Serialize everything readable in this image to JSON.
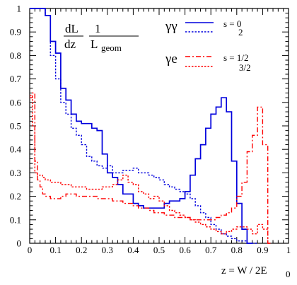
{
  "chart_data": {
    "type": "line",
    "x_label_main": "z = W / 2E",
    "x_label_sub": "0",
    "y_label": {
      "num1": "dL",
      "den1": "dz",
      "num2": "1",
      "den2_main": "L",
      "den2_sub": "geom"
    },
    "xlim": [
      0,
      1
    ],
    "ylim": [
      0,
      1
    ],
    "x_ticks": [
      "0",
      "0.1",
      "0.2",
      "0.3",
      "0.4",
      "0.5",
      "0.6",
      "0.7",
      "0.8",
      "0.9",
      "1"
    ],
    "y_ticks": [
      "0",
      "0.1",
      "0.2",
      "0.3",
      "0.4",
      "0.5",
      "0.6",
      "0.7",
      "0.8",
      "0.9",
      "1"
    ],
    "legend": {
      "group1": "γγ",
      "group2": "γe",
      "entries": [
        "s = 0",
        "2",
        "s = 1/2",
        "3/2"
      ]
    },
    "series": [
      {
        "name": "s = 0",
        "group": "γγ",
        "color": "#0000dd",
        "dash": "solid",
        "x": [
          0,
          0.02,
          0.04,
          0.06,
          0.08,
          0.1,
          0.12,
          0.14,
          0.16,
          0.18,
          0.2,
          0.22,
          0.24,
          0.26,
          0.28,
          0.3,
          0.32,
          0.34,
          0.36,
          0.38,
          0.4,
          0.42,
          0.44,
          0.46,
          0.48,
          0.5,
          0.52,
          0.54,
          0.56,
          0.58,
          0.6,
          0.62,
          0.64,
          0.66,
          0.68,
          0.7,
          0.72,
          0.74,
          0.76,
          0.78,
          0.8,
          0.82,
          0.84
        ],
        "y": [
          1,
          1,
          1,
          0.97,
          0.86,
          0.81,
          0.66,
          0.61,
          0.55,
          0.52,
          0.51,
          0.51,
          0.49,
          0.48,
          0.38,
          0.3,
          0.28,
          0.25,
          0.21,
          0.21,
          0.17,
          0.16,
          0.15,
          0.15,
          0.15,
          0.15,
          0.17,
          0.18,
          0.18,
          0.19,
          0.22,
          0.29,
          0.36,
          0.42,
          0.49,
          0.55,
          0.58,
          0.62,
          0.56,
          0.35,
          0.17,
          0.06,
          0.0
        ]
      },
      {
        "name": "2",
        "group": "γγ",
        "color": "#0000dd",
        "dash": "dotted",
        "x": [
          0,
          0.02,
          0.04,
          0.06,
          0.08,
          0.1,
          0.12,
          0.14,
          0.16,
          0.18,
          0.2,
          0.22,
          0.24,
          0.26,
          0.28,
          0.3,
          0.32,
          0.34,
          0.36,
          0.38,
          0.4,
          0.42,
          0.44,
          0.46,
          0.48,
          0.5,
          0.52,
          0.54,
          0.56,
          0.58,
          0.6,
          0.62,
          0.64,
          0.66,
          0.68,
          0.7,
          0.72,
          0.74,
          0.76,
          0.78,
          0.8,
          0.82,
          0.84,
          0.86
        ],
        "y": [
          1,
          1,
          1,
          0.97,
          0.8,
          0.7,
          0.6,
          0.55,
          0.49,
          0.46,
          0.42,
          0.37,
          0.35,
          0.33,
          0.32,
          0.33,
          0.3,
          0.3,
          0.31,
          0.31,
          0.32,
          0.3,
          0.3,
          0.29,
          0.28,
          0.27,
          0.25,
          0.24,
          0.23,
          0.22,
          0.21,
          0.19,
          0.16,
          0.13,
          0.11,
          0.08,
          0.06,
          0.04,
          0.03,
          0.02,
          0.01,
          0.01,
          0.0,
          0.0
        ]
      },
      {
        "name": "s = 1/2",
        "group": "γe",
        "color": "#ff0000",
        "dash": "dashdot",
        "x": [
          0,
          0.01,
          0.02,
          0.03,
          0.04,
          0.05,
          0.06,
          0.08,
          0.1,
          0.12,
          0.14,
          0.16,
          0.18,
          0.2,
          0.22,
          0.24,
          0.26,
          0.28,
          0.3,
          0.32,
          0.34,
          0.36,
          0.38,
          0.4,
          0.42,
          0.44,
          0.46,
          0.48,
          0.5,
          0.52,
          0.54,
          0.56,
          0.58,
          0.6,
          0.62,
          0.64,
          0.66,
          0.68,
          0.7,
          0.72,
          0.74,
          0.76,
          0.78,
          0.8,
          0.82,
          0.84,
          0.86,
          0.88,
          0.9,
          0.92
        ],
        "y": [
          0.62,
          0.64,
          0.35,
          0.27,
          0.24,
          0.21,
          0.2,
          0.19,
          0.19,
          0.2,
          0.21,
          0.21,
          0.2,
          0.2,
          0.2,
          0.2,
          0.19,
          0.19,
          0.19,
          0.18,
          0.18,
          0.17,
          0.17,
          0.16,
          0.15,
          0.15,
          0.14,
          0.13,
          0.13,
          0.12,
          0.12,
          0.11,
          0.11,
          0.11,
          0.1,
          0.1,
          0.1,
          0.1,
          0.1,
          0.11,
          0.12,
          0.13,
          0.15,
          0.2,
          0.26,
          0.39,
          0.46,
          0.58,
          0.42,
          0.0
        ]
      },
      {
        "name": "3/2",
        "group": "γe",
        "color": "#ff0000",
        "dash": "dotted",
        "x": [
          0,
          0.01,
          0.02,
          0.03,
          0.04,
          0.05,
          0.06,
          0.08,
          0.1,
          0.12,
          0.14,
          0.16,
          0.18,
          0.2,
          0.22,
          0.24,
          0.26,
          0.28,
          0.3,
          0.32,
          0.34,
          0.36,
          0.38,
          0.4,
          0.42,
          0.44,
          0.46,
          0.48,
          0.5,
          0.52,
          0.54,
          0.56,
          0.58,
          0.6,
          0.62,
          0.64,
          0.66,
          0.68,
          0.7,
          0.72,
          0.74,
          0.76,
          0.78,
          0.8,
          0.82,
          0.84,
          0.86,
          0.88,
          0.9,
          0.92
        ],
        "y": [
          0.63,
          0.5,
          0.3,
          0.29,
          0.29,
          0.28,
          0.27,
          0.26,
          0.26,
          0.25,
          0.25,
          0.24,
          0.24,
          0.24,
          0.23,
          0.23,
          0.23,
          0.24,
          0.24,
          0.25,
          0.27,
          0.29,
          0.26,
          0.25,
          0.22,
          0.21,
          0.19,
          0.2,
          0.18,
          0.16,
          0.14,
          0.13,
          0.12,
          0.11,
          0.1,
          0.09,
          0.08,
          0.07,
          0.06,
          0.05,
          0.04,
          0.05,
          0.06,
          0.07,
          0.07,
          0.06,
          0.04,
          0.08,
          0.06,
          0.0
        ]
      }
    ]
  }
}
